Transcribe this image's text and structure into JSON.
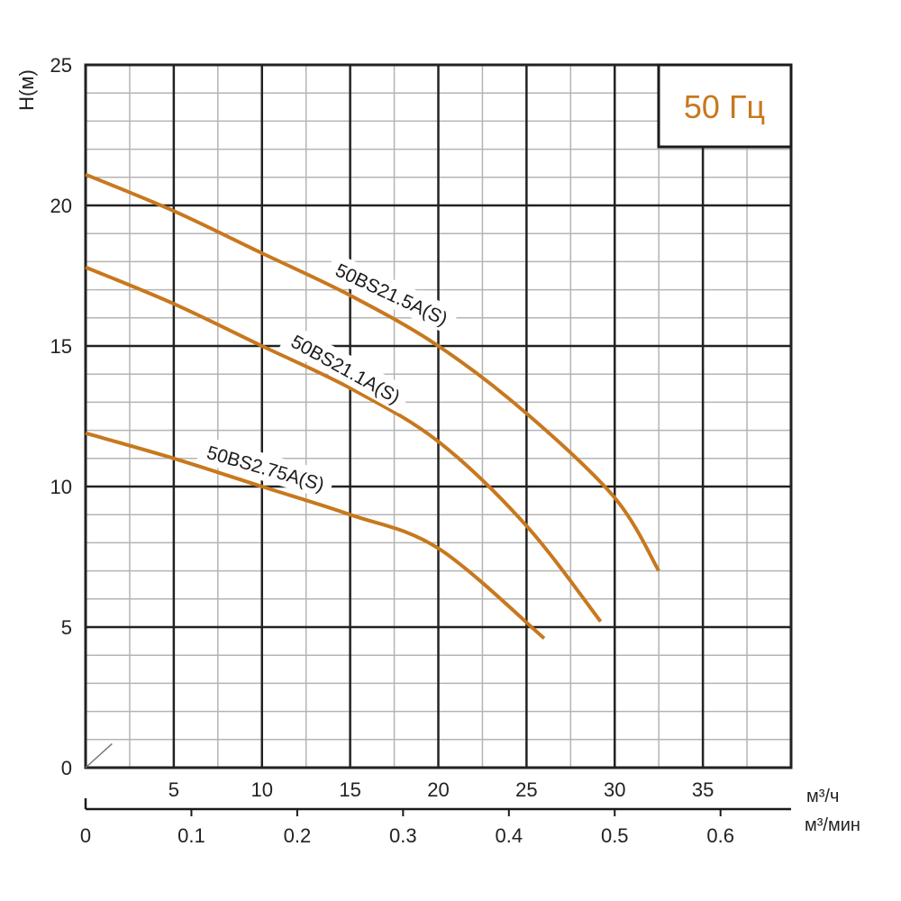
{
  "chart_data": {
    "type": "line",
    "badge": "50 Гц",
    "ylabel": "H(м)",
    "xlabel_top": "м³/ч",
    "xlabel_bottom": "м³/мин",
    "xlim": [
      0,
      40
    ],
    "ylim": [
      0,
      25
    ],
    "xticks": [
      5,
      10,
      15,
      20,
      25,
      30,
      35
    ],
    "yticks": [
      0,
      5,
      10,
      15,
      20,
      25
    ],
    "x2ticks": [
      "0",
      "0.1",
      "0.2",
      "0.3",
      "0.4",
      "0.5",
      "0.6"
    ],
    "grid": true,
    "colors": {
      "curve": "#c8781e",
      "grid_major": "#222222",
      "grid_minor": "#b4b4b4",
      "badge_text": "#c8781e"
    },
    "series": [
      {
        "name": "50BS21.5A(S)",
        "x": [
          0,
          5,
          10,
          15,
          20,
          25,
          30,
          32.5
        ],
        "y": [
          21.1,
          19.8,
          18.3,
          16.8,
          15.0,
          12.6,
          9.6,
          7.0
        ]
      },
      {
        "name": "50BS21.1A(S)",
        "x": [
          0,
          5,
          10,
          15,
          20,
          25,
          29.2
        ],
        "y": [
          17.8,
          16.5,
          15.0,
          13.5,
          11.6,
          8.6,
          5.2
        ]
      },
      {
        "name": "50BS2.75A(S)",
        "x": [
          0,
          5,
          10,
          15,
          20,
          26
        ],
        "y": [
          11.9,
          11.0,
          10.0,
          9.0,
          7.8,
          4.6
        ]
      }
    ]
  }
}
